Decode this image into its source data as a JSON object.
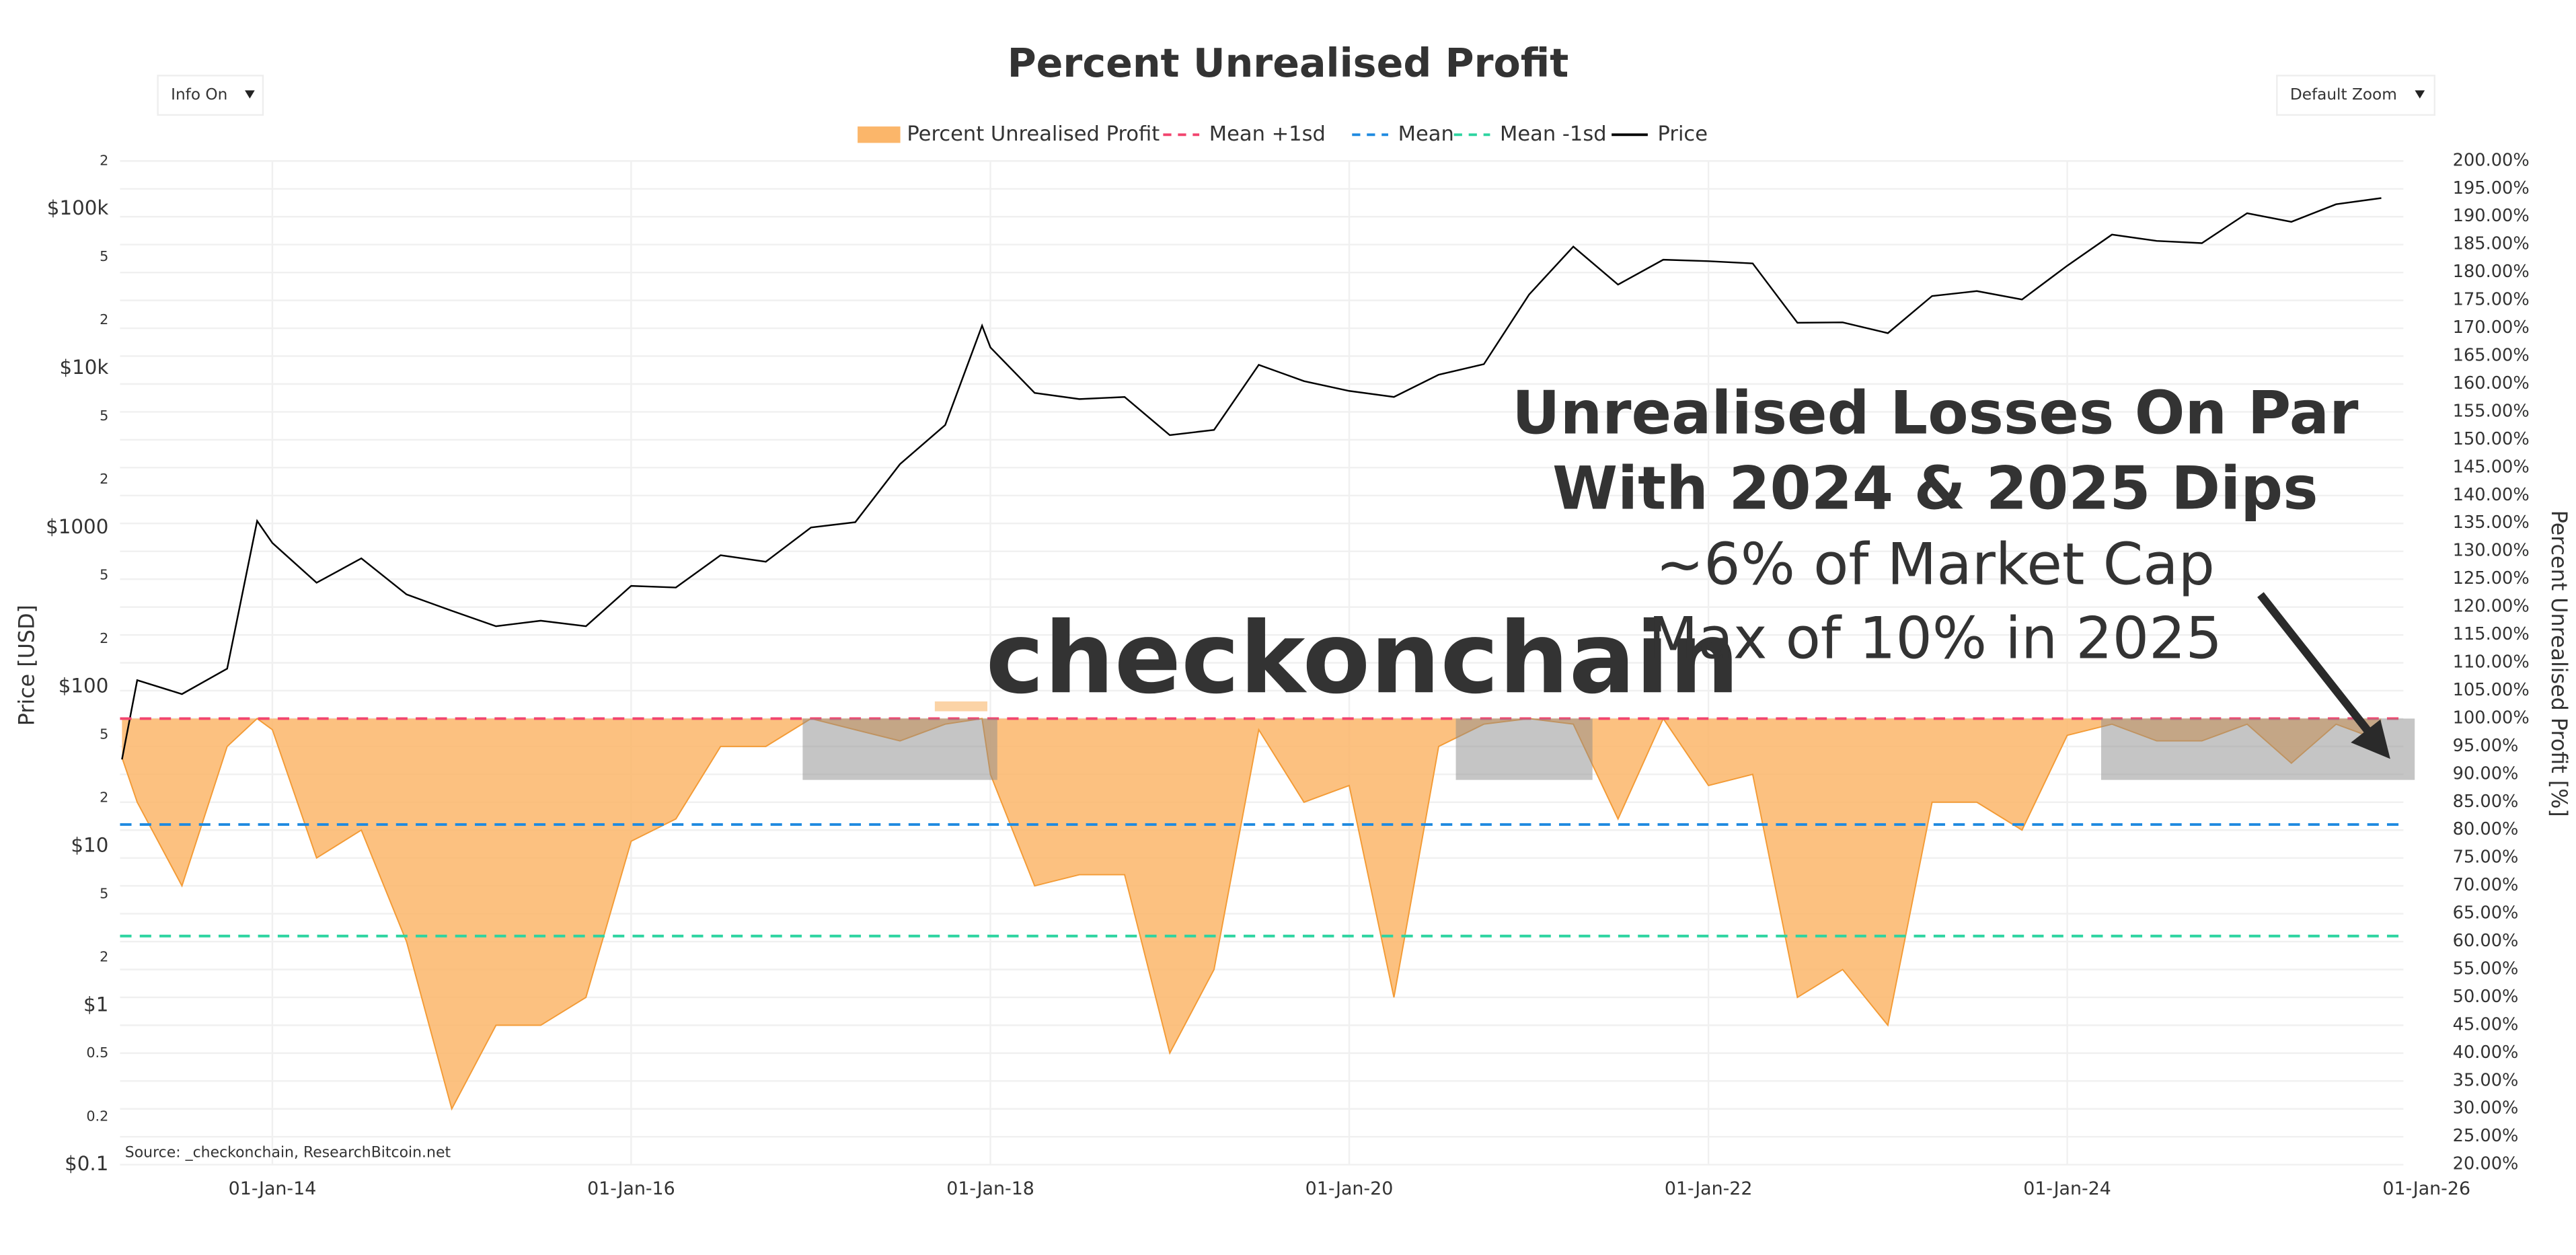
{
  "chart_data": {
    "type": "line",
    "title": "Percent Unrealised Profit",
    "controls": {
      "info": "Info On",
      "zoom": "Default Zoom"
    },
    "ylabel": "Price [USD]",
    "y2label": "Percent Unrealised Profit [%]",
    "source": "Source: _checkonchain, ResearchBitcoin.net",
    "watermark": "checkonchain",
    "annotation": [
      "Unrealised Losses On Par",
      "With 2024 & 2025 Dips",
      "~6% of Market Cap",
      "Max of 10% in 2025"
    ],
    "log_y": true,
    "grid": true,
    "xlim": [
      "2013-02-25",
      "2025-11-15"
    ],
    "xticks": [
      {
        "value": "2014-01-01",
        "label": "01-Jan-14"
      },
      {
        "value": "2016-01-01",
        "label": "01-Jan-16"
      },
      {
        "value": "2018-01-01",
        "label": "01-Jan-18"
      },
      {
        "value": "2020-01-01",
        "label": "01-Jan-20"
      },
      {
        "value": "2022-01-01",
        "label": "01-Jan-22"
      },
      {
        "value": "2024-01-01",
        "label": "01-Jan-24"
      },
      {
        "value": "2026-01-01",
        "label": "01-Jan-26"
      }
    ],
    "ylim": [
      0.1,
      200000
    ],
    "yticks": [
      {
        "value": 0.1,
        "label": "$0.1"
      },
      0.2,
      0.5,
      {
        "value": 1,
        "label": "$1"
      },
      2,
      5,
      {
        "value": 10,
        "label": "$10"
      },
      {
        "value": 20,
        "label": "2"
      },
      {
        "value": 50,
        "label": "5"
      },
      {
        "value": 100,
        "label": "$100"
      },
      {
        "value": 200,
        "label": "2"
      },
      {
        "value": 500,
        "label": "5"
      },
      {
        "value": 1000,
        "label": "$1000"
      },
      {
        "value": 2000,
        "label": "2"
      },
      {
        "value": 5000,
        "label": "5"
      },
      {
        "value": 10000,
        "label": "$10k"
      },
      {
        "value": 20000,
        "label": "2"
      },
      {
        "value": 50000,
        "label": "5"
      },
      {
        "value": 100000,
        "label": "$100k"
      },
      {
        "value": 200000,
        "label": "2"
      }
    ],
    "y2lim": [
      20,
      200
    ],
    "y2ticks": [
      {
        "value": 20,
        "label": "20.00%"
      },
      {
        "value": 25,
        "label": "25.00%"
      },
      {
        "value": 30,
        "label": "30.00%"
      },
      {
        "value": 35,
        "label": "35.00%"
      },
      {
        "value": 40,
        "label": "40.00%"
      },
      {
        "value": 45,
        "label": "45.00%"
      },
      {
        "value": 50,
        "label": "50.00%"
      },
      {
        "value": 55,
        "label": "55.00%"
      },
      {
        "value": 60,
        "label": "60.00%"
      },
      {
        "value": 65,
        "label": "65.00%"
      },
      {
        "value": 70,
        "label": "70.00%"
      },
      {
        "value": 75,
        "label": "75.00%"
      },
      {
        "value": 80,
        "label": "80.00%"
      },
      {
        "value": 85,
        "label": "85.00%"
      },
      {
        "value": 90,
        "label": "90.00%"
      },
      {
        "value": 95,
        "label": "95.00%"
      },
      {
        "value": 100,
        "label": "100.00%"
      },
      {
        "value": 105,
        "label": "105.00%"
      },
      {
        "value": 110,
        "label": "110.00%"
      },
      {
        "value": 115,
        "label": "115.00%"
      },
      {
        "value": 120,
        "label": "120.00%"
      },
      {
        "value": 125,
        "label": "125.00%"
      },
      {
        "value": 130,
        "label": "130.00%"
      },
      {
        "value": 135,
        "label": "135.00%"
      },
      {
        "value": 140,
        "label": "140.00%"
      },
      {
        "value": 145,
        "label": "145.00%"
      },
      {
        "value": 150,
        "label": "150.00%"
      },
      {
        "value": 155,
        "label": "155.00%"
      },
      {
        "value": 160,
        "label": "160.00%"
      },
      {
        "value": 165,
        "label": "165.00%"
      },
      {
        "value": 170,
        "label": "170.00%"
      },
      {
        "value": 175,
        "label": "175.00%"
      },
      {
        "value": 180,
        "label": "180.00%"
      },
      {
        "value": 185,
        "label": "185.00%"
      },
      {
        "value": 190,
        "label": "190.00%"
      },
      {
        "value": 195,
        "label": "195.00%"
      },
      {
        "value": 200,
        "label": "200.00%"
      }
    ],
    "x": [
      "2013-03-01",
      "2013-04-01",
      "2013-07-01",
      "2013-10-01",
      "2013-12-01",
      "2014-01-01",
      "2014-04-01",
      "2014-07-01",
      "2014-10-01",
      "2015-01-01",
      "2015-04-01",
      "2015-07-01",
      "2015-10-01",
      "2016-01-01",
      "2016-04-01",
      "2016-07-01",
      "2016-10-01",
      "2017-01-01",
      "2017-04-01",
      "2017-07-01",
      "2017-10-01",
      "2017-12-15",
      "2018-01-01",
      "2018-04-01",
      "2018-07-01",
      "2018-10-01",
      "2019-01-01",
      "2019-04-01",
      "2019-07-01",
      "2019-10-01",
      "2020-01-01",
      "2020-04-01",
      "2020-07-01",
      "2020-10-01",
      "2021-01-01",
      "2021-04-01",
      "2021-07-01",
      "2021-10-01",
      "2022-01-01",
      "2022-04-01",
      "2022-07-01",
      "2022-10-01",
      "2023-01-01",
      "2023-04-01",
      "2023-07-01",
      "2023-10-01",
      "2024-01-01",
      "2024-04-01",
      "2024-07-01",
      "2024-10-01",
      "2025-01-01",
      "2025-04-01",
      "2025-07-01",
      "2025-10-01"
    ],
    "series": [
      {
        "name": "Percent Unrealised Profit",
        "type": "area",
        "axis": "y2",
        "color": "#fbb66a",
        "values": [
          93,
          85,
          70,
          95,
          100,
          98,
          75,
          80,
          60,
          30,
          45,
          45,
          50,
          78,
          82,
          95,
          95,
          100,
          98,
          96,
          99,
          100,
          90,
          70,
          72,
          72,
          40,
          55,
          98,
          85,
          88,
          50,
          95,
          99,
          100,
          99,
          82,
          100,
          88,
          90,
          50,
          55,
          45,
          85,
          85,
          80,
          97,
          99,
          96,
          96,
          99,
          92,
          99,
          96
        ]
      },
      {
        "name": "Mean +1sd",
        "type": "hline",
        "axis": "y2",
        "color": "#f2446e",
        "value": 100
      },
      {
        "name": "Mean",
        "type": "hline",
        "axis": "y2",
        "color": "#1f8ae0",
        "value": 81
      },
      {
        "name": "Mean -1sd",
        "type": "hline",
        "axis": "y2",
        "color": "#2dd4a0",
        "value": 61
      },
      {
        "name": "Price",
        "type": "line",
        "axis": "y",
        "color": "#000000",
        "values": [
          35,
          110,
          90,
          130,
          1100,
          800,
          450,
          640,
          380,
          300,
          240,
          260,
          240,
          430,
          420,
          670,
          610,
          1000,
          1080,
          2500,
          4400,
          18500,
          13500,
          7000,
          6400,
          6600,
          3800,
          4100,
          10500,
          8300,
          7200,
          6600,
          9100,
          10600,
          29000,
          58000,
          33500,
          48000,
          47000,
          45500,
          19300,
          19400,
          16600,
          28400,
          30500,
          27000,
          44000,
          69000,
          63000,
          61000,
          94000,
          83000,
          107000,
          117000
        ]
      }
    ],
    "highlights": [
      {
        "x": [
          "2016-12-15",
          "2018-01-15"
        ],
        "y": [
          89,
          100
        ]
      },
      {
        "x": [
          "2020-08-05",
          "2021-05-10"
        ],
        "y": [
          89,
          100
        ]
      },
      {
        "x": [
          "2024-03-10",
          "2025-12-08"
        ],
        "y": [
          89,
          100
        ]
      }
    ],
    "highlight_color": "#8c8c8c"
  }
}
